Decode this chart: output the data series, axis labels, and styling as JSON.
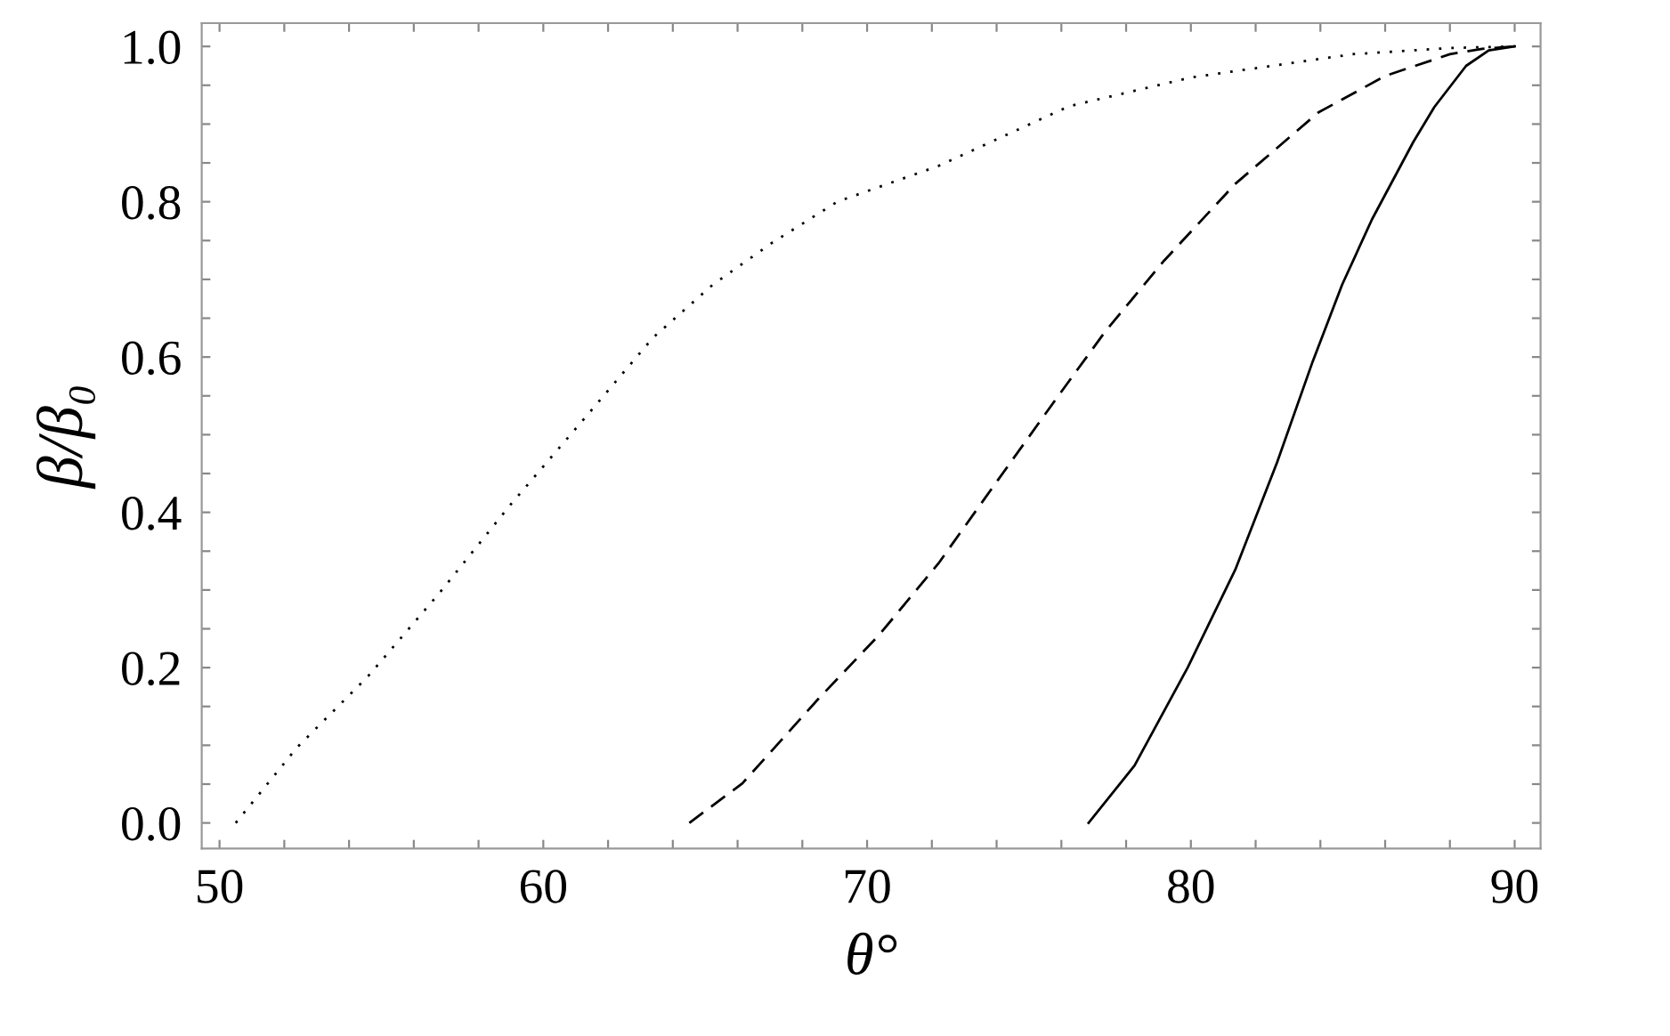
{
  "chart_data": {
    "type": "line",
    "xlabel": "θ°",
    "ylabel": "β/β₀",
    "xlim": [
      49.45,
      90.8
    ],
    "ylim": [
      -0.033,
      1.03
    ],
    "xticks": [
      50,
      {
        "value": 52,
        "label": null
      },
      {
        "value": 54,
        "label": null
      },
      {
        "value": 56,
        "label": null
      },
      {
        "value": 58,
        "label": null
      },
      60,
      {
        "value": 62,
        "label": null
      },
      {
        "value": 64,
        "label": null
      },
      {
        "value": 66,
        "label": null
      },
      {
        "value": 68,
        "label": null
      },
      70,
      {
        "value": 72,
        "label": null
      },
      {
        "value": 74,
        "label": null
      },
      {
        "value": 76,
        "label": null
      },
      {
        "value": 78,
        "label": null
      },
      80,
      {
        "value": 82,
        "label": null
      },
      {
        "value": 84,
        "label": null
      },
      {
        "value": 86,
        "label": null
      },
      {
        "value": 88,
        "label": null
      },
      90
    ],
    "yticks": [
      {
        "value": 0,
        "label": "0.0"
      },
      {
        "value": 0.05,
        "label": null
      },
      {
        "value": 0.1,
        "label": null
      },
      {
        "value": 0.15,
        "label": null
      },
      0.2,
      {
        "value": 0.25,
        "label": null
      },
      {
        "value": 0.3,
        "label": null
      },
      {
        "value": 0.35,
        "label": null
      },
      0.4,
      {
        "value": 0.45,
        "label": null
      },
      {
        "value": 0.5,
        "label": null
      },
      {
        "value": 0.55,
        "label": null
      },
      0.6,
      {
        "value": 0.65,
        "label": null
      },
      {
        "value": 0.7,
        "label": null
      },
      {
        "value": 0.75,
        "label": null
      },
      0.8,
      {
        "value": 0.85,
        "label": null
      },
      {
        "value": 0.9,
        "label": null
      },
      {
        "value": 0.95,
        "label": null
      },
      {
        "value": 1,
        "label": "1.0"
      }
    ],
    "grid": false,
    "legend": false,
    "series": [
      {
        "color": "#000000",
        "line_style": "dotted",
        "x": [
          50.5,
          52.39,
          54.59,
          56.79,
          58.99,
          61.19,
          63.39,
          65.23,
          67.06,
          69.08,
          72.2,
          76.24,
          80,
          85,
          88,
          90
        ],
        "values": [
          0,
          0.097,
          0.189,
          0.296,
          0.41,
          0.517,
          0.625,
          0.693,
          0.747,
          0.8,
          0.846,
          0.923,
          0.96,
          0.99,
          0.998,
          1
        ]
      },
      {
        "color": "#000000",
        "line_style": "dashed",
        "x": [
          64.51,
          66.15,
          68.5,
          70.37,
          72.2,
          74.03,
          75.87,
          77.34,
          79.17,
          81.37,
          83.94,
          86,
          88,
          89,
          90
        ],
        "values": [
          0,
          0.051,
          0.16,
          0.242,
          0.334,
          0.441,
          0.548,
          0.632,
          0.724,
          0.823,
          0.915,
          0.962,
          0.99,
          0.997,
          1
        ]
      },
      {
        "color": "#000000",
        "line_style": "solid",
        "x": [
          76.84,
          78.26,
          79.9,
          81.37,
          82.66,
          83.76,
          84.67,
          85.59,
          86.87,
          87.52,
          88.5,
          89.2,
          90
        ],
        "values": [
          0,
          0.074,
          0.2,
          0.326,
          0.464,
          0.594,
          0.693,
          0.777,
          0.877,
          0.922,
          0.975,
          0.995,
          1
        ]
      }
    ]
  }
}
